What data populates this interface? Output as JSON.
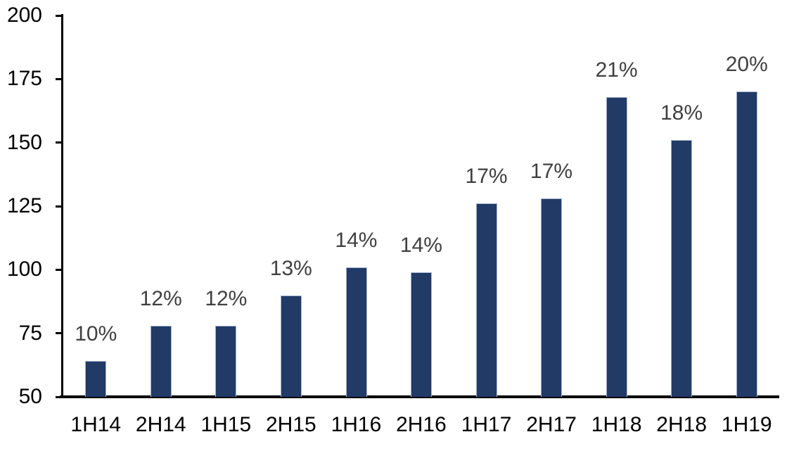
{
  "chart_data": {
    "type": "bar",
    "title": "",
    "xlabel": "",
    "ylabel": "",
    "categories": [
      "1H14",
      "2H14",
      "1H15",
      "2H15",
      "1H16",
      "2H16",
      "1H17",
      "2H17",
      "1H18",
      "2H18",
      "1H19"
    ],
    "values": [
      64,
      78,
      78,
      90,
      101,
      99,
      126,
      128,
      168,
      151,
      170
    ],
    "bar_labels": [
      "10%",
      "12%",
      "12%",
      "13%",
      "14%",
      "14%",
      "17%",
      "17%",
      "21%",
      "18%",
      "20%"
    ],
    "ylim": [
      50,
      200
    ],
    "yticks": [
      50,
      75,
      100,
      125,
      150,
      175,
      200
    ],
    "grid": false,
    "legend": false,
    "colors": {
      "bar_fill": "#213A66",
      "bar_edge": "#A6B3CE",
      "value_label": "#404040",
      "axis": "#000000",
      "background": "#ffffff"
    }
  }
}
